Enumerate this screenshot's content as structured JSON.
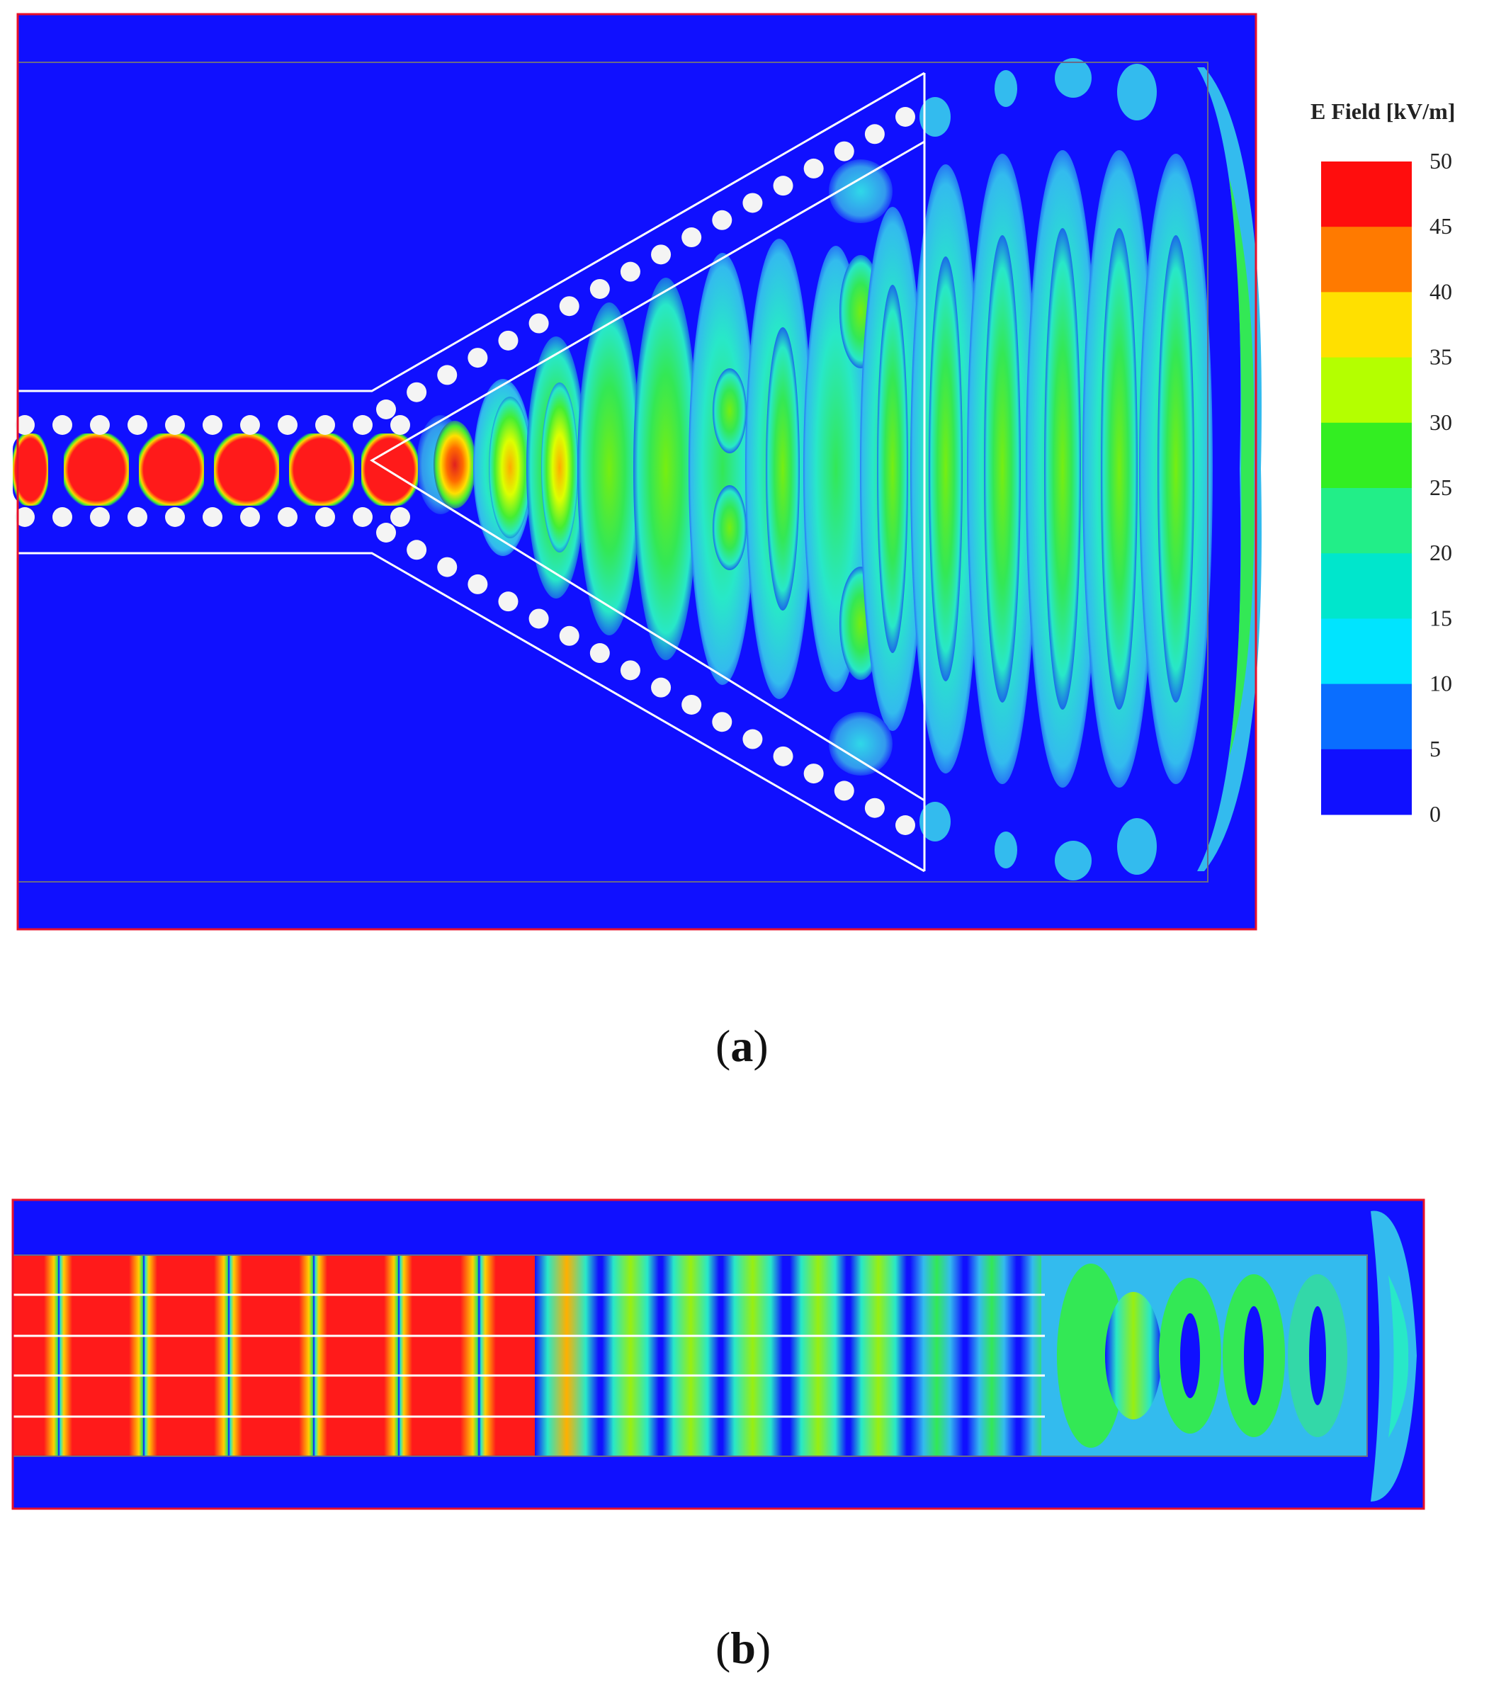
{
  "panel_a": {
    "legend_title": "E Field [kV/m]",
    "legend_ticks": [
      "50",
      "45",
      "40",
      "35",
      "30",
      "25",
      "20",
      "15",
      "10",
      "5",
      "0"
    ],
    "legend_colors": [
      "#ff0d0d",
      "#ff7a00",
      "#ffe000",
      "#b4ff00",
      "#33ee22",
      "#22ee88",
      "#00e6cc",
      "#00e4ff",
      "#0a6eff",
      "#1010ff"
    ],
    "caption_open": "(",
    "caption_letter": "a",
    "caption_close": ")"
  },
  "panel_b": {
    "caption_open": "(",
    "caption_letter": "b",
    "caption_close": ")"
  },
  "palette": {
    "background_blue": "#1010ff",
    "frame_red": "#e8102a",
    "red": "#ff1a1a",
    "orange": "#ff7a00",
    "yellow": "#e6ff00",
    "green": "#44ee33",
    "cyan": "#28e8c8",
    "light_blue": "#33bbee",
    "white": "#ffffff"
  }
}
